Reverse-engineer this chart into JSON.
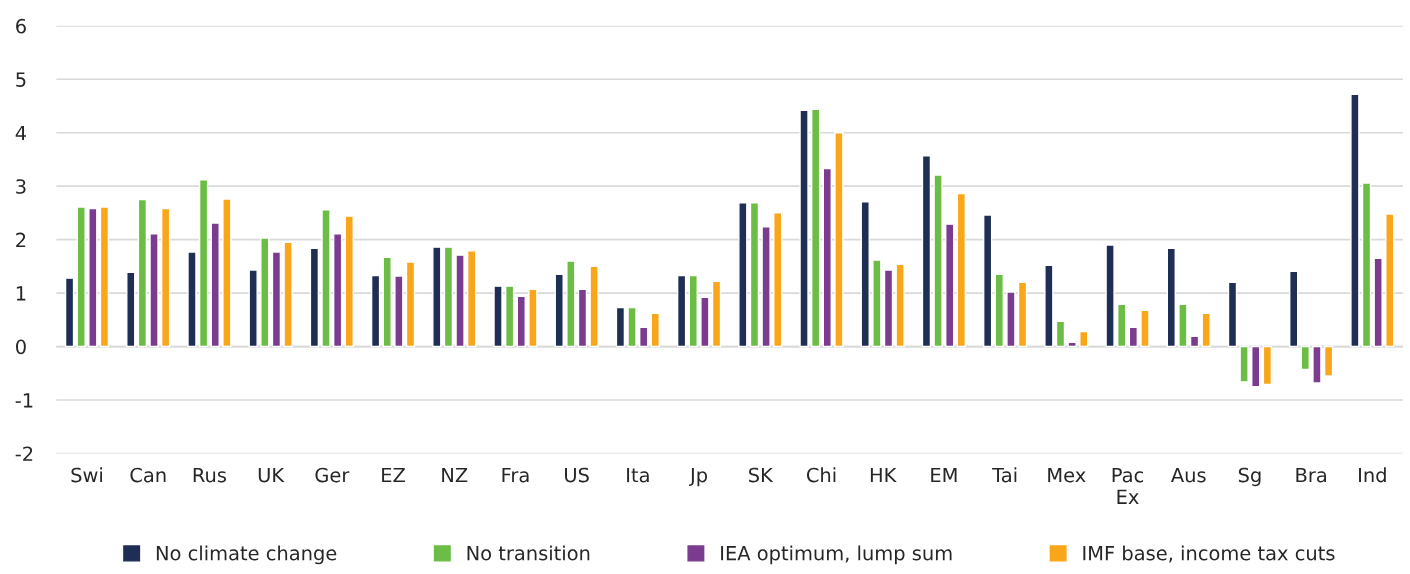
{
  "chart_data": {
    "type": "bar",
    "categories": [
      "Swi",
      "Can",
      "Rus",
      "UK",
      "Ger",
      "EZ",
      "NZ",
      "Fra",
      "US",
      "Ita",
      "Jp",
      "SK",
      "Chi",
      "HK",
      "EM",
      "Tai",
      "Mex",
      "Pac Ex",
      "Aus",
      "Sg",
      "Bra",
      "Ind"
    ],
    "series": [
      {
        "name": "No climate change",
        "color": "#1f2e54",
        "values": [
          1.28,
          1.39,
          1.77,
          1.43,
          1.84,
          1.33,
          1.86,
          1.13,
          1.35,
          0.73,
          1.33,
          2.69,
          4.42,
          2.71,
          3.57,
          2.46,
          1.52,
          1.9,
          1.84,
          1.2,
          1.41,
          4.72
        ]
      },
      {
        "name": "No transition",
        "color": "#6cbd45",
        "values": [
          2.61,
          2.75,
          3.12,
          2.03,
          2.56,
          1.67,
          1.86,
          1.13,
          1.6,
          0.73,
          1.33,
          2.69,
          4.44,
          1.62,
          3.21,
          1.35,
          0.47,
          0.79,
          0.79,
          -0.66,
          -0.43,
          3.06
        ]
      },
      {
        "name": "IEA optimum, lump sum",
        "color": "#7b3c8f",
        "values": [
          2.58,
          2.11,
          2.31,
          1.77,
          2.11,
          1.32,
          1.71,
          0.94,
          1.07,
          0.36,
          0.92,
          2.24,
          3.33,
          1.43,
          2.29,
          1.02,
          0.08,
          0.36,
          0.19,
          -0.75,
          -0.68,
          1.65
        ]
      },
      {
        "name": "IMF base, income tax cuts",
        "color": "#f9a61a",
        "values": [
          2.61,
          2.58,
          2.76,
          1.95,
          2.44,
          1.58,
          1.79,
          1.07,
          1.5,
          0.62,
          1.22,
          2.5,
          4.0,
          1.54,
          2.86,
          1.2,
          0.28,
          0.68,
          0.62,
          -0.71,
          -0.55,
          2.48
        ]
      }
    ],
    "ylim": [
      -2,
      6
    ],
    "yticks": [
      -2,
      -1,
      0,
      1,
      2,
      3,
      4,
      5,
      6
    ],
    "grid": "y",
    "legend": "bottom"
  }
}
